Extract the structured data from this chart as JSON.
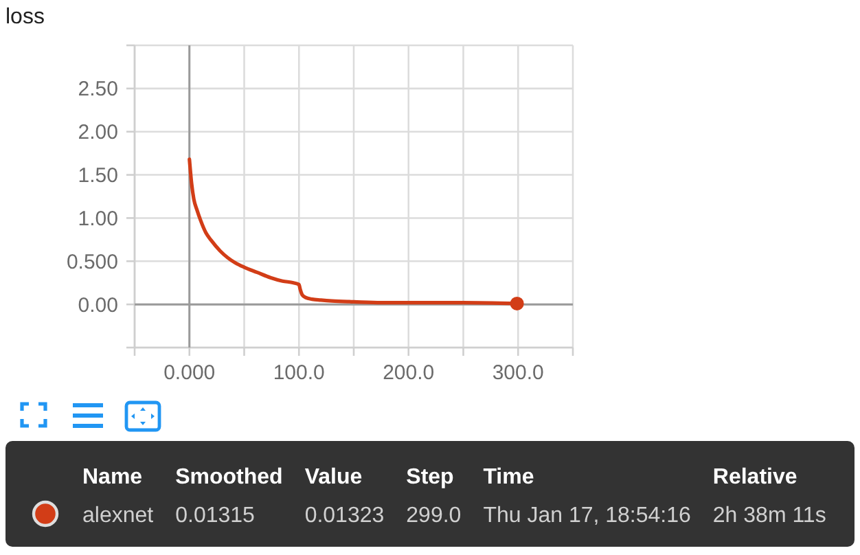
{
  "chart_data": {
    "type": "line",
    "title": "loss",
    "xlim": [
      -50,
      350
    ],
    "xticks": [
      {
        "value": -50,
        "label": null
      },
      {
        "value": 0,
        "label": "0.000"
      },
      {
        "value": 50,
        "label": null
      },
      {
        "value": 100,
        "label": "100.0"
      },
      {
        "value": 150,
        "label": null
      },
      {
        "value": 200,
        "label": "200.0"
      },
      {
        "value": 250,
        "label": null
      },
      {
        "value": 300,
        "label": "300.0"
      },
      {
        "value": 350,
        "label": null
      }
    ],
    "ylim": [
      -0.5,
      3.0
    ],
    "yticks": [
      {
        "value": -0.5,
        "label": null
      },
      {
        "value": 0,
        "label": "0.00"
      },
      {
        "value": 0.5,
        "label": "0.500"
      },
      {
        "value": 1,
        "label": "1.00"
      },
      {
        "value": 1.5,
        "label": "1.50"
      },
      {
        "value": 2,
        "label": "2.00"
      },
      {
        "value": 2.5,
        "label": "2.50"
      },
      {
        "value": 3,
        "label": null
      }
    ],
    "grid": true,
    "legend": "bottom",
    "series": [
      {
        "name": "alexnet",
        "color": "#d23d17",
        "x": [
          0,
          2,
          4,
          7,
          10,
          15,
          20,
          28,
          35,
          42,
          50,
          62,
          74,
          85,
          95,
          100,
          101,
          103,
          106,
          112,
          120,
          130,
          150,
          175,
          200,
          250,
          299
        ],
        "values": [
          1.68,
          1.4,
          1.22,
          1.09,
          0.98,
          0.83,
          0.74,
          0.62,
          0.54,
          0.48,
          0.43,
          0.37,
          0.31,
          0.27,
          0.25,
          0.23,
          0.18,
          0.11,
          0.08,
          0.06,
          0.05,
          0.04,
          0.03,
          0.02,
          0.02,
          0.02,
          0.01
        ]
      },
      {
        "type": "scatter",
        "color": "#d23d17",
        "x": [
          299
        ],
        "values": [
          0.01
        ]
      }
    ],
    "annotations": [
      "Name",
      "Smoothed",
      "Value",
      "Step",
      "Time",
      "Relative",
      "0.01315",
      "0.01323",
      "299.0",
      "Thu Jan 17, 18:54:16",
      "2h 38m 11s"
    ]
  }
}
